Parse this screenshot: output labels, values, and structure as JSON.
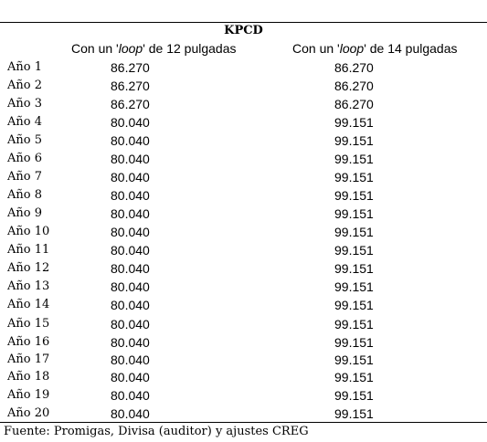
{
  "table": {
    "group_header": "KPCD",
    "col1_prefix": "Con un '",
    "col1_em": "loop",
    "col1_suffix": "' de 12 pulgadas",
    "col2_prefix": "Con un '",
    "col2_em": "loop",
    "col2_suffix": "' de 14 pulgadas",
    "rows": [
      {
        "year": "Año 1",
        "v12": "86.270",
        "v14": "86.270"
      },
      {
        "year": "Año 2",
        "v12": "86.270",
        "v14": "86.270"
      },
      {
        "year": "Año 3",
        "v12": "86.270",
        "v14": "86.270"
      },
      {
        "year": "Año 4",
        "v12": "80.040",
        "v14": "99.151"
      },
      {
        "year": "Año 5",
        "v12": "80.040",
        "v14": "99.151"
      },
      {
        "year": "Año 6",
        "v12": "80.040",
        "v14": "99.151"
      },
      {
        "year": "Año 7",
        "v12": "80.040",
        "v14": "99.151"
      },
      {
        "year": "Año 8",
        "v12": "80.040",
        "v14": "99.151"
      },
      {
        "year": "Año 9",
        "v12": "80.040",
        "v14": "99.151"
      },
      {
        "year": "Año 10",
        "v12": "80.040",
        "v14": "99.151"
      },
      {
        "year": "Año 11",
        "v12": "80.040",
        "v14": "99.151"
      },
      {
        "year": "Año 12",
        "v12": "80.040",
        "v14": "99.151"
      },
      {
        "year": "Año 13",
        "v12": "80.040",
        "v14": "99.151"
      },
      {
        "year": "Año 14",
        "v12": "80.040",
        "v14": "99.151"
      },
      {
        "year": "Año 15",
        "v12": "80.040",
        "v14": "99.151"
      },
      {
        "year": "Año 16",
        "v12": "80.040",
        "v14": "99.151"
      },
      {
        "year": "Año 17",
        "v12": "80.040",
        "v14": "99.151"
      },
      {
        "year": "Año 18",
        "v12": "80.040",
        "v14": "99.151"
      },
      {
        "year": "Año 19",
        "v12": "80.040",
        "v14": "99.151"
      },
      {
        "year": "Año 20",
        "v12": "80.040",
        "v14": "99.151"
      }
    ],
    "source": "Fuente: Promigas, Divisa (auditor) y ajustes CREG"
  }
}
